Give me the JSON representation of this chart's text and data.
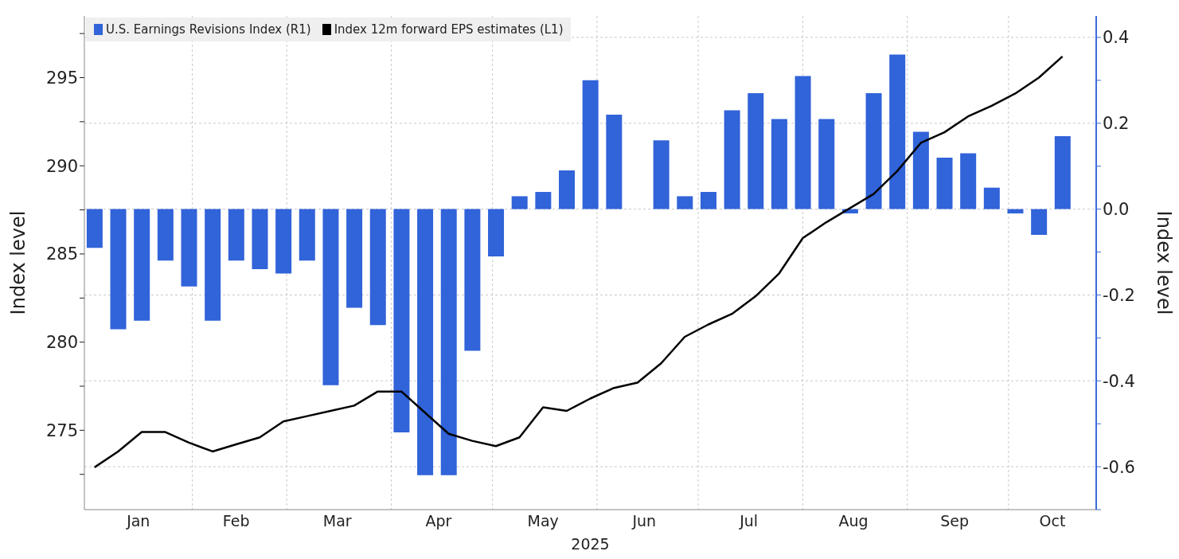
{
  "chart_data": {
    "type": "bar",
    "xlabel": "2025",
    "ylabel": "Index level",
    "y2label": "Index level",
    "x": [
      "2025-01-03",
      "2025-01-10",
      "2025-01-17",
      "2025-01-24",
      "2025-01-31",
      "2025-02-07",
      "2025-02-14",
      "2025-02-21",
      "2025-02-28",
      "2025-03-07",
      "2025-03-14",
      "2025-03-21",
      "2025-03-28",
      "2025-04-04",
      "2025-04-11",
      "2025-04-18",
      "2025-04-25",
      "2025-05-02",
      "2025-05-09",
      "2025-05-16",
      "2025-05-23",
      "2025-05-30",
      "2025-06-06",
      "2025-06-13",
      "2025-06-20",
      "2025-06-27",
      "2025-07-04",
      "2025-07-11",
      "2025-07-18",
      "2025-07-25",
      "2025-08-01",
      "2025-08-08",
      "2025-08-15",
      "2025-08-22",
      "2025-08-29",
      "2025-09-05",
      "2025-09-12",
      "2025-09-19",
      "2025-09-26",
      "2025-10-03",
      "2025-10-10",
      "2025-10-17"
    ],
    "series": [
      {
        "name": "U.S. Earnings Revisions Index (R1)",
        "axis": "y2",
        "color": "#3163d9",
        "values": [
          -0.09,
          -0.28,
          -0.26,
          -0.12,
          -0.18,
          -0.26,
          -0.12,
          -0.14,
          -0.15,
          -0.12,
          -0.41,
          -0.23,
          -0.27,
          -0.52,
          -0.62,
          -0.62,
          -0.33,
          -0.11,
          0.03,
          0.04,
          0.09,
          0.3,
          0.22,
          null,
          0.16,
          0.03,
          0.04,
          0.23,
          0.27,
          0.21,
          0.31,
          0.21,
          -0.01,
          0.27,
          0.36,
          0.18,
          0.12,
          0.13,
          0.05,
          -0.01,
          -0.06,
          0.17
        ]
      },
      {
        "name": "Index 12m forward EPS estimates (L1)",
        "type": "line",
        "color": "#000000",
        "values": [
          272.9,
          273.8,
          274.9,
          274.9,
          274.3,
          273.8,
          274.2,
          274.6,
          275.5,
          275.8,
          276.1,
          276.4,
          277.2,
          277.2,
          276.0,
          274.8,
          274.4,
          274.1,
          274.6,
          276.3,
          276.1,
          276.8,
          277.4,
          277.7,
          278.8,
          280.3,
          281.0,
          281.6,
          282.6,
          283.9,
          285.9,
          286.8,
          287.6,
          288.4,
          289.7,
          291.3,
          291.9,
          292.8,
          293.4,
          294.1,
          295.0,
          296.2
        ]
      }
    ],
    "xlim": [
      "2024-12-31",
      "2025-10-27"
    ],
    "xticks": [
      {
        "value": "2025-01-16",
        "label": "Jan"
      },
      {
        "value": "2025-02-01",
        "label": null
      },
      {
        "value": "2025-02-14",
        "label": "Feb"
      },
      {
        "value": "2025-03-01",
        "label": null
      },
      {
        "value": "2025-03-16",
        "label": "Mar"
      },
      {
        "value": "2025-04-01",
        "label": null
      },
      {
        "value": "2025-04-15",
        "label": "Apr"
      },
      {
        "value": "2025-05-01",
        "label": null
      },
      {
        "value": "2025-05-16",
        "label": "May"
      },
      {
        "value": "2025-06-01",
        "label": null
      },
      {
        "value": "2025-06-15",
        "label": "Jun"
      },
      {
        "value": "2025-07-01",
        "label": null
      },
      {
        "value": "2025-07-16",
        "label": "Jul"
      },
      {
        "value": "2025-08-01",
        "label": null
      },
      {
        "value": "2025-08-16",
        "label": "Aug"
      },
      {
        "value": "2025-09-01",
        "label": null
      },
      {
        "value": "2025-09-15",
        "label": "Sep"
      },
      {
        "value": "2025-10-01",
        "label": null
      },
      {
        "value": "2025-10-14",
        "label": "Oct"
      }
    ],
    "ylim": [
      270.5,
      298.5
    ],
    "yticks": [
      {
        "value": 272.5,
        "label": null
      },
      275,
      {
        "value": 277.5,
        "label": null
      },
      280,
      {
        "value": 282.5,
        "label": null
      },
      285,
      {
        "value": 287.5,
        "label": null
      },
      290,
      {
        "value": 292.5,
        "label": null
      },
      295,
      {
        "value": 297.5,
        "label": null
      }
    ],
    "y2lim": [
      -0.7,
      0.45
    ],
    "y2ticks": [
      {
        "value": -0.7,
        "label": null
      },
      {
        "value": -0.6,
        "label": "-0.6"
      },
      {
        "value": -0.5,
        "label": null
      },
      {
        "value": -0.4,
        "label": "-0.4"
      },
      {
        "value": -0.3,
        "label": null
      },
      {
        "value": -0.2,
        "label": "-0.2"
      },
      {
        "value": -0.1,
        "label": null
      },
      {
        "value": 0,
        "label": "0.0"
      },
      {
        "value": 0.1,
        "label": null
      },
      {
        "value": 0.2,
        "label": "0.2"
      },
      {
        "value": 0.3,
        "label": null
      },
      {
        "value": 0.4,
        "label": "0.4"
      }
    ],
    "grid": true,
    "legend": "top left"
  }
}
